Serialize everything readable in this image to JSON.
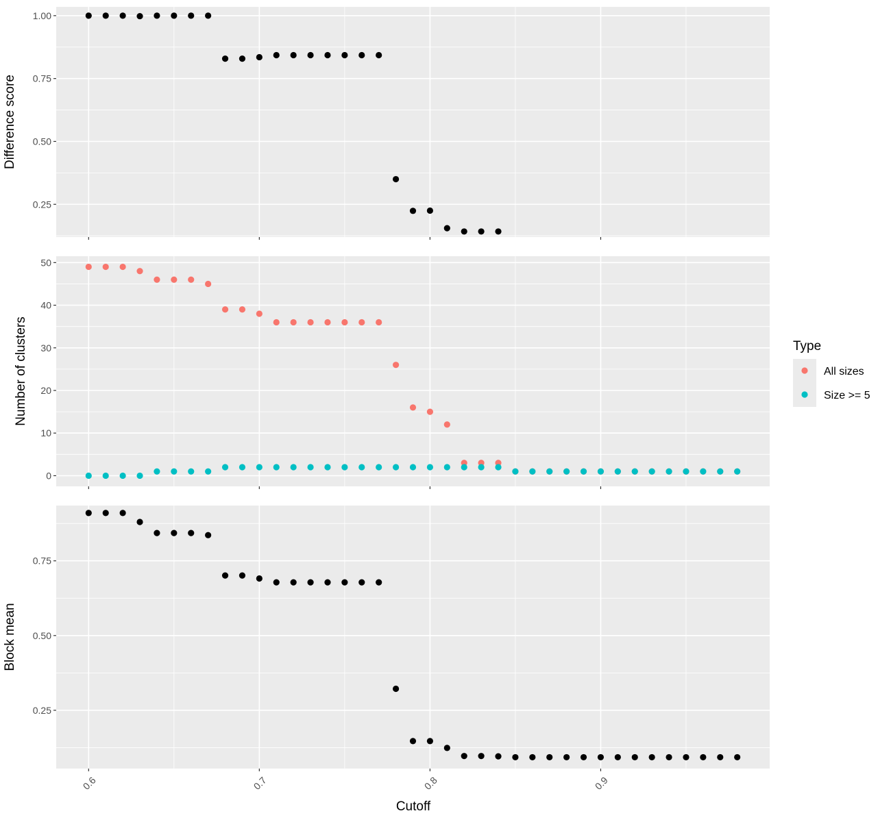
{
  "chart_data": {
    "type": "scatter",
    "xlabel": "Cutoff",
    "x_ticks": [
      0.6,
      0.7,
      0.8,
      0.9
    ],
    "xlim": [
      0.581,
      0.999
    ],
    "colors": {
      "all_sizes": "#F8766D",
      "size_ge_5": "#00BFC4",
      "default": "#000000"
    },
    "legend": {
      "title": "Type",
      "placement": "right",
      "entries": [
        {
          "label": "All sizes",
          "color": "#F8766D"
        },
        {
          "label": "Size >= 5",
          "color": "#00BFC4"
        }
      ]
    },
    "panels": [
      {
        "ylabel": "Difference score",
        "ylim": [
          0.12,
          1.035
        ],
        "y_ticks": [
          0.25,
          0.5,
          0.75,
          1.0
        ],
        "y_tick_labels": [
          "0.25",
          "0.50",
          "0.75",
          "1.00"
        ],
        "series": [
          {
            "color": "#000000",
            "points": [
              [
                0.6,
                1.0
              ],
              [
                0.61,
                1.0
              ],
              [
                0.62,
                1.0
              ],
              [
                0.63,
                0.998
              ],
              [
                0.64,
                1.0
              ],
              [
                0.65,
                1.0
              ],
              [
                0.66,
                1.0
              ],
              [
                0.67,
                1.0
              ],
              [
                0.68,
                0.829
              ],
              [
                0.69,
                0.829
              ],
              [
                0.7,
                0.835
              ],
              [
                0.71,
                0.843
              ],
              [
                0.72,
                0.843
              ],
              [
                0.73,
                0.843
              ],
              [
                0.74,
                0.843
              ],
              [
                0.75,
                0.843
              ],
              [
                0.76,
                0.843
              ],
              [
                0.77,
                0.843
              ],
              [
                0.78,
                0.35
              ],
              [
                0.79,
                0.224
              ],
              [
                0.8,
                0.225
              ],
              [
                0.81,
                0.155
              ],
              [
                0.82,
                0.142
              ],
              [
                0.83,
                0.142
              ],
              [
                0.84,
                0.142
              ]
            ]
          }
        ]
      },
      {
        "ylabel": "Number of clusters",
        "ylim": [
          -2.5,
          51.5
        ],
        "y_ticks": [
          0,
          10,
          20,
          30,
          40,
          50
        ],
        "y_tick_labels": [
          "0",
          "10",
          "20",
          "30",
          "40",
          "50"
        ],
        "series": [
          {
            "name": "All sizes",
            "color": "#F8766D",
            "points": [
              [
                0.6,
                49
              ],
              [
                0.61,
                49
              ],
              [
                0.62,
                49
              ],
              [
                0.63,
                48
              ],
              [
                0.64,
                46
              ],
              [
                0.65,
                46
              ],
              [
                0.66,
                46
              ],
              [
                0.67,
                45
              ],
              [
                0.68,
                39
              ],
              [
                0.69,
                39
              ],
              [
                0.7,
                38
              ],
              [
                0.71,
                36
              ],
              [
                0.72,
                36
              ],
              [
                0.73,
                36
              ],
              [
                0.74,
                36
              ],
              [
                0.75,
                36
              ],
              [
                0.76,
                36
              ],
              [
                0.77,
                36
              ],
              [
                0.78,
                26
              ],
              [
                0.79,
                16
              ],
              [
                0.8,
                15
              ],
              [
                0.81,
                12
              ],
              [
                0.82,
                3
              ],
              [
                0.83,
                3
              ],
              [
                0.84,
                3
              ],
              [
                0.85,
                1
              ],
              [
                0.86,
                1
              ],
              [
                0.87,
                1
              ],
              [
                0.88,
                1
              ],
              [
                0.89,
                1
              ],
              [
                0.9,
                1
              ],
              [
                0.91,
                1
              ],
              [
                0.92,
                1
              ],
              [
                0.93,
                1
              ],
              [
                0.94,
                1
              ],
              [
                0.95,
                1
              ],
              [
                0.96,
                1
              ],
              [
                0.97,
                1
              ],
              [
                0.98,
                1
              ]
            ]
          },
          {
            "name": "Size >= 5",
            "color": "#00BFC4",
            "points": [
              [
                0.6,
                0
              ],
              [
                0.61,
                0
              ],
              [
                0.62,
                0
              ],
              [
                0.63,
                0
              ],
              [
                0.64,
                1
              ],
              [
                0.65,
                1
              ],
              [
                0.66,
                1
              ],
              [
                0.67,
                1
              ],
              [
                0.68,
                2
              ],
              [
                0.69,
                2
              ],
              [
                0.7,
                2
              ],
              [
                0.71,
                2
              ],
              [
                0.72,
                2
              ],
              [
                0.73,
                2
              ],
              [
                0.74,
                2
              ],
              [
                0.75,
                2
              ],
              [
                0.76,
                2
              ],
              [
                0.77,
                2
              ],
              [
                0.78,
                2
              ],
              [
                0.79,
                2
              ],
              [
                0.8,
                2
              ],
              [
                0.81,
                2
              ],
              [
                0.82,
                2
              ],
              [
                0.83,
                2
              ],
              [
                0.84,
                2
              ],
              [
                0.85,
                1
              ],
              [
                0.86,
                1
              ],
              [
                0.87,
                1
              ],
              [
                0.88,
                1
              ],
              [
                0.89,
                1
              ],
              [
                0.9,
                1
              ],
              [
                0.91,
                1
              ],
              [
                0.92,
                1
              ],
              [
                0.93,
                1
              ],
              [
                0.94,
                1
              ],
              [
                0.95,
                1
              ],
              [
                0.96,
                1
              ],
              [
                0.97,
                1
              ],
              [
                0.98,
                1
              ]
            ]
          }
        ]
      },
      {
        "ylabel": "Block mean",
        "ylim": [
          0.055,
          0.935
        ],
        "y_ticks": [
          0.25,
          0.5,
          0.75
        ],
        "y_tick_labels": [
          "0.25",
          "0.50",
          "0.75"
        ],
        "series": [
          {
            "color": "#000000",
            "points": [
              [
                0.6,
                0.91
              ],
              [
                0.61,
                0.91
              ],
              [
                0.62,
                0.91
              ],
              [
                0.63,
                0.88
              ],
              [
                0.64,
                0.843
              ],
              [
                0.65,
                0.843
              ],
              [
                0.66,
                0.843
              ],
              [
                0.67,
                0.836
              ],
              [
                0.68,
                0.701
              ],
              [
                0.69,
                0.701
              ],
              [
                0.7,
                0.691
              ],
              [
                0.71,
                0.678
              ],
              [
                0.72,
                0.678
              ],
              [
                0.73,
                0.678
              ],
              [
                0.74,
                0.678
              ],
              [
                0.75,
                0.678
              ],
              [
                0.76,
                0.678
              ],
              [
                0.77,
                0.678
              ],
              [
                0.78,
                0.322
              ],
              [
                0.79,
                0.147
              ],
              [
                0.8,
                0.147
              ],
              [
                0.81,
                0.124
              ],
              [
                0.82,
                0.097
              ],
              [
                0.83,
                0.097
              ],
              [
                0.84,
                0.096
              ],
              [
                0.85,
                0.093
              ],
              [
                0.86,
                0.093
              ],
              [
                0.87,
                0.093
              ],
              [
                0.88,
                0.093
              ],
              [
                0.89,
                0.093
              ],
              [
                0.9,
                0.093
              ],
              [
                0.91,
                0.093
              ],
              [
                0.92,
                0.093
              ],
              [
                0.93,
                0.093
              ],
              [
                0.94,
                0.093
              ],
              [
                0.95,
                0.093
              ],
              [
                0.96,
                0.093
              ],
              [
                0.97,
                0.093
              ],
              [
                0.98,
                0.093
              ]
            ]
          }
        ]
      }
    ]
  }
}
